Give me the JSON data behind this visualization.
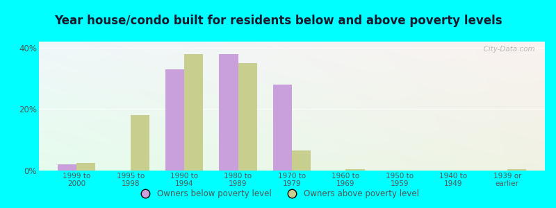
{
  "title": "Year house/condo built for residents below and above poverty levels",
  "categories": [
    "1999 to\n2000",
    "1995 to\n1998",
    "1990 to\n1994",
    "1980 to\n1989",
    "1970 to\n1979",
    "1960 to\n1969",
    "1950 to\n1959",
    "1940 to\n1949",
    "1939 or\nearlier"
  ],
  "below_poverty": [
    2.0,
    0.0,
    33.0,
    38.0,
    28.0,
    0.0,
    0.0,
    0.0,
    0.0
  ],
  "above_poverty": [
    2.5,
    18.0,
    38.0,
    35.0,
    6.5,
    0.5,
    0.0,
    0.0,
    0.5
  ],
  "below_color": "#c9a0dc",
  "above_color": "#c8cf8e",
  "ylim": [
    0,
    42
  ],
  "yticks": [
    0,
    20,
    40
  ],
  "ytick_labels": [
    "0%",
    "20%",
    "40%"
  ],
  "bar_width": 0.35,
  "background_grad_colors": [
    "#d4edd8",
    "#e8f5f0",
    "#f5faf5"
  ],
  "outer_color": "#00ffff",
  "title_fontsize": 12,
  "tick_color": "#555555",
  "legend_below_label": "Owners below poverty level",
  "legend_above_label": "Owners above poverty level",
  "watermark": "  City-Data.com"
}
